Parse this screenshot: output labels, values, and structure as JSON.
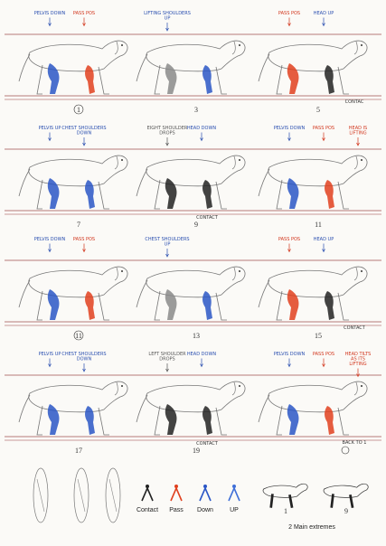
{
  "colors": {
    "contact": "#222222",
    "pass": "#e0401e",
    "down": "#2a56c6",
    "up": "#3f6fd8",
    "blue_label": "#2a4fb0",
    "red_label": "#d2361d",
    "line": "#b77b78",
    "sketch": "#777777"
  },
  "rows": [
    {
      "frames": [
        {
          "number": "1",
          "labels": [
            {
              "text": "PELVIS DOWN",
              "color": "blue"
            },
            {
              "text": "PASS POS",
              "color": "red"
            }
          ],
          "legs": [
            "down",
            "pass"
          ]
        },
        {
          "number": "3",
          "labels": [
            {
              "text": "LIFTING SHOULDERS UP",
              "color": "blue"
            }
          ],
          "legs": [
            "grey",
            "down"
          ]
        },
        {
          "number": "5",
          "labels": [
            {
              "text": "PASS POS",
              "color": "red"
            },
            {
              "text": "HEAD UP",
              "color": "blue"
            }
          ],
          "legs": [
            "pass",
            "contact"
          ],
          "extra": "CONTAC"
        }
      ]
    },
    {
      "frames": [
        {
          "number": "7",
          "labels": [
            {
              "text": "PELVIS UP",
              "color": "blue"
            },
            {
              "text": "CHEST SHOULDERS DOWN",
              "color": "blue"
            }
          ],
          "legs": [
            "down",
            "down"
          ]
        },
        {
          "number": "9",
          "labels": [
            {
              "text": "EIGHT SHOULDER DROPS",
              "color": "grey"
            },
            {
              "text": "HEAD DOWN",
              "color": "blue"
            }
          ],
          "legs": [
            "contact",
            "contact"
          ],
          "extra": "CONTACT"
        },
        {
          "number": "11",
          "labels": [
            {
              "text": "PELVIS DOWN",
              "color": "blue"
            },
            {
              "text": "PASS POS",
              "color": "red"
            },
            {
              "text": "HEAD IS LIFTING",
              "color": "red"
            }
          ],
          "legs": [
            "down",
            "pass"
          ]
        }
      ]
    },
    {
      "frames": [
        {
          "number": "11",
          "labels": [
            {
              "text": "PELVIS DOWN",
              "color": "blue"
            },
            {
              "text": "PASS POS",
              "color": "red"
            }
          ],
          "legs": [
            "down",
            "pass"
          ]
        },
        {
          "number": "13",
          "labels": [
            {
              "text": "CHEST SHOULDERS UP",
              "color": "blue"
            }
          ],
          "legs": [
            "grey",
            "down"
          ]
        },
        {
          "number": "15",
          "labels": [
            {
              "text": "PASS POS",
              "color": "red"
            },
            {
              "text": "HEAD UP",
              "color": "blue"
            }
          ],
          "legs": [
            "pass",
            "contact"
          ],
          "extra": "CONTACT"
        }
      ]
    },
    {
      "frames": [
        {
          "number": "17",
          "labels": [
            {
              "text": "PELVIS UP",
              "color": "blue"
            },
            {
              "text": "CHEST SHOULDERS DOWN",
              "color": "blue"
            }
          ],
          "legs": [
            "down",
            "down"
          ]
        },
        {
          "number": "19",
          "labels": [
            {
              "text": "LEFT SHOULDER DROPS",
              "color": "grey"
            },
            {
              "text": "HEAD DOWN",
              "color": "blue"
            }
          ],
          "legs": [
            "contact",
            "contact"
          ],
          "extra": "CONTACT"
        },
        {
          "number": "",
          "labels": [
            {
              "text": "PELVIS DOWN",
              "color": "blue"
            },
            {
              "text": "PASS POS",
              "color": "red"
            },
            {
              "text": "HEAD TILTS AS ITS LIFTING",
              "color": "red"
            }
          ],
          "legs": [
            "down",
            "pass"
          ],
          "extra": "BACK TO 1"
        }
      ]
    }
  ],
  "legend": {
    "items": [
      {
        "label": "Contact",
        "key": "contact"
      },
      {
        "label": "Pass",
        "key": "pass"
      },
      {
        "label": "Down",
        "key": "down"
      },
      {
        "label": "UP",
        "key": "up"
      }
    ],
    "extremes_label": "2 Main extremes",
    "extremes_numbers": [
      "1",
      "9"
    ]
  }
}
